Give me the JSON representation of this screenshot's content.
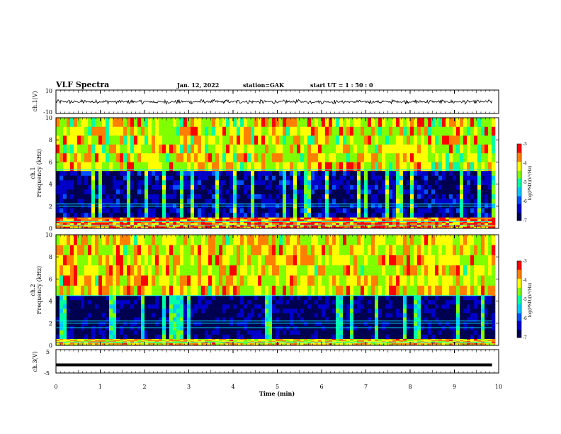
{
  "header": {
    "title": "VLF Spectra",
    "date": "Jan. 12, 2022",
    "station": "station=GAK",
    "start": "start  UT =   1 : 50 : 0"
  },
  "colors": {
    "spectrum": [
      "#000050",
      "#0000c8",
      "#0050ff",
      "#00c8ff",
      "#00ffa0",
      "#80ff00",
      "#ffff00",
      "#ff8000",
      "#ff0000",
      "#ffffff"
    ],
    "waveform": "#000000",
    "axis": "#000000"
  },
  "chart_data": [
    {
      "type": "line",
      "name_label": "ch.1(V)",
      "ylim": [
        -10,
        10
      ],
      "yticks": [
        "10",
        "-10"
      ],
      "x_range": [
        0,
        9.85
      ],
      "baseline": 0,
      "noise_amplitude": 2,
      "note_shape": "noisy waveform around 0 V"
    },
    {
      "type": "heatmap",
      "name_label": "ch.1",
      "ylabel": "Frequency (kHz)",
      "ylim": [
        0,
        10
      ],
      "yticks": [
        "0",
        "2",
        "4",
        "6",
        "8",
        "10"
      ],
      "colorbar": {
        "label": "log(PSD)(V²/Hz)",
        "range": [
          -7,
          -3
        ],
        "ticks": [
          "-3",
          "-4",
          "-5",
          "-6",
          "-7"
        ]
      },
      "bands": [
        {
          "from_khz": 0,
          "to_khz": 1,
          "level": -3.6
        },
        {
          "from_khz": 1,
          "to_khz": 5.2,
          "level": -6.6
        },
        {
          "from_khz": 5.2,
          "to_khz": 10,
          "level": -4.3
        }
      ],
      "lines_khz": [
        0.3,
        0.6,
        2.0,
        2.2,
        5.3
      ]
    },
    {
      "type": "heatmap",
      "name_label": "ch.2",
      "ylabel": "Frequency (kHz)",
      "ylim": [
        0,
        10
      ],
      "yticks": [
        "0",
        "2",
        "4",
        "6",
        "8",
        "10"
      ],
      "colorbar": {
        "label": "log(PSD)(V²/Hz)",
        "range": [
          -7,
          -3
        ],
        "ticks": [
          "-3",
          "-4",
          "-5",
          "-6",
          "-7"
        ]
      },
      "bands": [
        {
          "from_khz": 0,
          "to_khz": 0.6,
          "level": -4.0
        },
        {
          "from_khz": 0.6,
          "to_khz": 4.5,
          "level": -6.8
        },
        {
          "from_khz": 4.5,
          "to_khz": 10,
          "level": -4.2
        }
      ],
      "lines_khz": [
        0.3,
        1.6,
        2.0,
        2.2,
        4.5
      ]
    },
    {
      "type": "line",
      "name_label": "ch.3(V)",
      "ylim": [
        -5,
        5
      ],
      "yticks": [
        "5",
        "-5"
      ],
      "x_range": [
        0,
        9.85
      ],
      "value": -1.5
    }
  ],
  "xaxis": {
    "label": "Time (min)",
    "range": [
      0,
      10
    ],
    "ticks": [
      "0",
      "1",
      "2",
      "3",
      "4",
      "5",
      "6",
      "7",
      "8",
      "9",
      "10"
    ]
  }
}
